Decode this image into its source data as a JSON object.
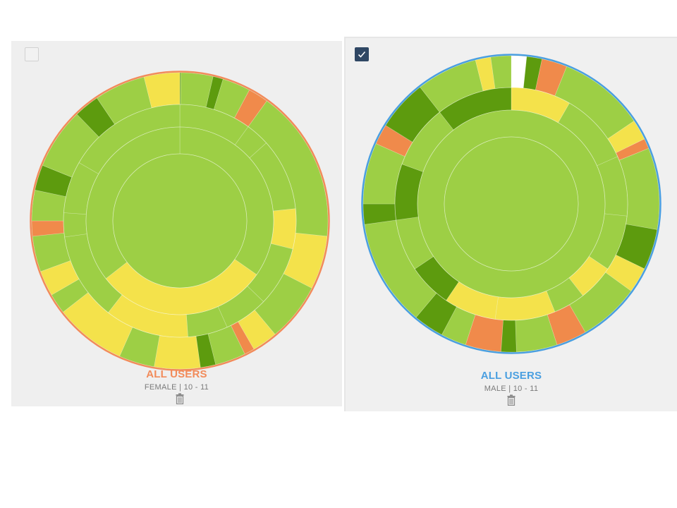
{
  "cards": [
    {
      "selected": false,
      "title": "ALL USERS",
      "subtitle": "FEMALE  |  10 - 11",
      "accent_color": "#f28b5a",
      "center_color": "#9dcf45",
      "icons": {
        "checkbox": "checkbox-icon",
        "delete": "trash-icon"
      },
      "ring_segments": [
        {
          "ring": 3,
          "start": 0,
          "end": 0.4,
          "color": "#5d9b0e"
        },
        {
          "ring": 3,
          "start": 0.4,
          "end": 13,
          "color": "#9dcf45"
        },
        {
          "ring": 3,
          "start": 13,
          "end": 17,
          "color": "#5d9b0e"
        },
        {
          "ring": 3,
          "start": 17,
          "end": 28,
          "color": "#9dcf45"
        },
        {
          "ring": 3,
          "start": 28,
          "end": 36,
          "color": "#f08a4b"
        },
        {
          "ring": 3,
          "start": 36,
          "end": 96,
          "color": "#9dcf45"
        },
        {
          "ring": 3,
          "start": 96,
          "end": 117,
          "color": "#f4e24b"
        },
        {
          "ring": 3,
          "start": 117,
          "end": 140,
          "color": "#9dcf45"
        },
        {
          "ring": 3,
          "start": 140,
          "end": 150,
          "color": "#f4e24b"
        },
        {
          "ring": 3,
          "start": 150,
          "end": 154,
          "color": "#f08a4b"
        },
        {
          "ring": 3,
          "start": 154,
          "end": 166,
          "color": "#9dcf45"
        },
        {
          "ring": 3,
          "start": 166,
          "end": 172,
          "color": "#5d9b0e"
        },
        {
          "ring": 3,
          "start": 172,
          "end": 190,
          "color": "#f4e24b"
        },
        {
          "ring": 3,
          "start": 190,
          "end": 204,
          "color": "#9dcf45"
        },
        {
          "ring": 3,
          "start": 204,
          "end": 232,
          "color": "#f4e24b"
        },
        {
          "ring": 3,
          "start": 232,
          "end": 240,
          "color": "#9dcf45"
        },
        {
          "ring": 3,
          "start": 240,
          "end": 250,
          "color": "#f4e24b"
        },
        {
          "ring": 3,
          "start": 250,
          "end": 264,
          "color": "#9dcf45"
        },
        {
          "ring": 3,
          "start": 264,
          "end": 270,
          "color": "#f08a4b"
        },
        {
          "ring": 3,
          "start": 270,
          "end": 282,
          "color": "#9dcf45"
        },
        {
          "ring": 3,
          "start": 282,
          "end": 292,
          "color": "#5d9b0e"
        },
        {
          "ring": 3,
          "start": 292,
          "end": 316,
          "color": "#9dcf45"
        },
        {
          "ring": 3,
          "start": 316,
          "end": 326,
          "color": "#5d9b0e"
        },
        {
          "ring": 3,
          "start": 326,
          "end": 346,
          "color": "#9dcf45"
        },
        {
          "ring": 3,
          "start": 346,
          "end": 360,
          "color": "#f4e24b"
        },
        {
          "ring": 2,
          "start": 0,
          "end": 36,
          "color": "#9dcf45"
        },
        {
          "ring": 2,
          "start": 36,
          "end": 48,
          "color": "#9dcf45"
        },
        {
          "ring": 2,
          "start": 48,
          "end": 84,
          "color": "#9dcf45"
        },
        {
          "ring": 2,
          "start": 84,
          "end": 104,
          "color": "#f4e24b"
        },
        {
          "ring": 2,
          "start": 104,
          "end": 134,
          "color": "#9dcf45"
        },
        {
          "ring": 2,
          "start": 134,
          "end": 156,
          "color": "#9dcf45"
        },
        {
          "ring": 2,
          "start": 156,
          "end": 176,
          "color": "#9dcf45"
        },
        {
          "ring": 2,
          "start": 176,
          "end": 218,
          "color": "#f4e24b"
        },
        {
          "ring": 2,
          "start": 218,
          "end": 262,
          "color": "#9dcf45"
        },
        {
          "ring": 2,
          "start": 262,
          "end": 274,
          "color": "#9dcf45"
        },
        {
          "ring": 2,
          "start": 274,
          "end": 300,
          "color": "#9dcf45"
        },
        {
          "ring": 2,
          "start": 300,
          "end": 360,
          "color": "#9dcf45"
        },
        {
          "ring": 1,
          "start": 0,
          "end": 125,
          "color": "#9dcf45"
        },
        {
          "ring": 1,
          "start": 125,
          "end": 232,
          "color": "#f4e24b"
        },
        {
          "ring": 1,
          "start": 232,
          "end": 360,
          "color": "#9dcf45"
        },
        {
          "ring": 0,
          "start": 0,
          "end": 360,
          "color": "#9dcf45"
        }
      ]
    },
    {
      "selected": true,
      "title": "ALL USERS",
      "subtitle": "MALE  |  10 - 11",
      "accent_color": "#4a9fe0",
      "center_color": "#9dcf45",
      "icons": {
        "checkbox": "checkmark-icon",
        "delete": "trash-icon"
      },
      "ring_segments": [
        {
          "ring": 3,
          "start": 0,
          "end": 6,
          "color": "#ffffff"
        },
        {
          "ring": 3,
          "start": 6,
          "end": 12,
          "color": "#5d9b0e"
        },
        {
          "ring": 3,
          "start": 12,
          "end": 22,
          "color": "#f08a4b"
        },
        {
          "ring": 3,
          "start": 22,
          "end": 56,
          "color": "#9dcf45"
        },
        {
          "ring": 3,
          "start": 56,
          "end": 64,
          "color": "#f4e24b"
        },
        {
          "ring": 3,
          "start": 64,
          "end": 68,
          "color": "#f08a4b"
        },
        {
          "ring": 3,
          "start": 68,
          "end": 100,
          "color": "#9dcf45"
        },
        {
          "ring": 3,
          "start": 100,
          "end": 116,
          "color": "#5d9b0e"
        },
        {
          "ring": 3,
          "start": 116,
          "end": 126,
          "color": "#f4e24b"
        },
        {
          "ring": 3,
          "start": 126,
          "end": 150,
          "color": "#9dcf45"
        },
        {
          "ring": 3,
          "start": 150,
          "end": 162,
          "color": "#f08a4b"
        },
        {
          "ring": 3,
          "start": 162,
          "end": 178,
          "color": "#9dcf45"
        },
        {
          "ring": 3,
          "start": 178,
          "end": 184,
          "color": "#5d9b0e"
        },
        {
          "ring": 3,
          "start": 184,
          "end": 198,
          "color": "#f08a4b"
        },
        {
          "ring": 3,
          "start": 198,
          "end": 208,
          "color": "#9dcf45"
        },
        {
          "ring": 3,
          "start": 208,
          "end": 220,
          "color": "#5d9b0e"
        },
        {
          "ring": 3,
          "start": 220,
          "end": 262,
          "color": "#9dcf45"
        },
        {
          "ring": 3,
          "start": 262,
          "end": 270,
          "color": "#5d9b0e"
        },
        {
          "ring": 3,
          "start": 270,
          "end": 294,
          "color": "#9dcf45"
        },
        {
          "ring": 3,
          "start": 294,
          "end": 302,
          "color": "#f08a4b"
        },
        {
          "ring": 3,
          "start": 302,
          "end": 322,
          "color": "#5d9b0e"
        },
        {
          "ring": 3,
          "start": 322,
          "end": 346,
          "color": "#9dcf45"
        },
        {
          "ring": 3,
          "start": 346,
          "end": 352,
          "color": "#f4e24b"
        },
        {
          "ring": 3,
          "start": 352,
          "end": 360,
          "color": "#9dcf45"
        },
        {
          "ring": 2,
          "start": 0,
          "end": 30,
          "color": "#f4e24b"
        },
        {
          "ring": 2,
          "start": 30,
          "end": 66,
          "color": "#9dcf45"
        },
        {
          "ring": 2,
          "start": 66,
          "end": 96,
          "color": "#9dcf45"
        },
        {
          "ring": 2,
          "start": 96,
          "end": 124,
          "color": "#9dcf45"
        },
        {
          "ring": 2,
          "start": 124,
          "end": 142,
          "color": "#f4e24b"
        },
        {
          "ring": 2,
          "start": 142,
          "end": 158,
          "color": "#9dcf45"
        },
        {
          "ring": 2,
          "start": 158,
          "end": 188,
          "color": "#f4e24b"
        },
        {
          "ring": 2,
          "start": 188,
          "end": 214,
          "color": "#f4e24b"
        },
        {
          "ring": 2,
          "start": 214,
          "end": 236,
          "color": "#5d9b0e"
        },
        {
          "ring": 2,
          "start": 236,
          "end": 262,
          "color": "#9dcf45"
        },
        {
          "ring": 2,
          "start": 262,
          "end": 290,
          "color": "#5d9b0e"
        },
        {
          "ring": 2,
          "start": 290,
          "end": 322,
          "color": "#9dcf45"
        },
        {
          "ring": 2,
          "start": 322,
          "end": 360,
          "color": "#5d9b0e"
        },
        {
          "ring": 1,
          "start": 0,
          "end": 360,
          "color": "#9dcf45"
        },
        {
          "ring": 0,
          "start": 0,
          "end": 360,
          "color": "#9dcf45"
        }
      ]
    }
  ]
}
